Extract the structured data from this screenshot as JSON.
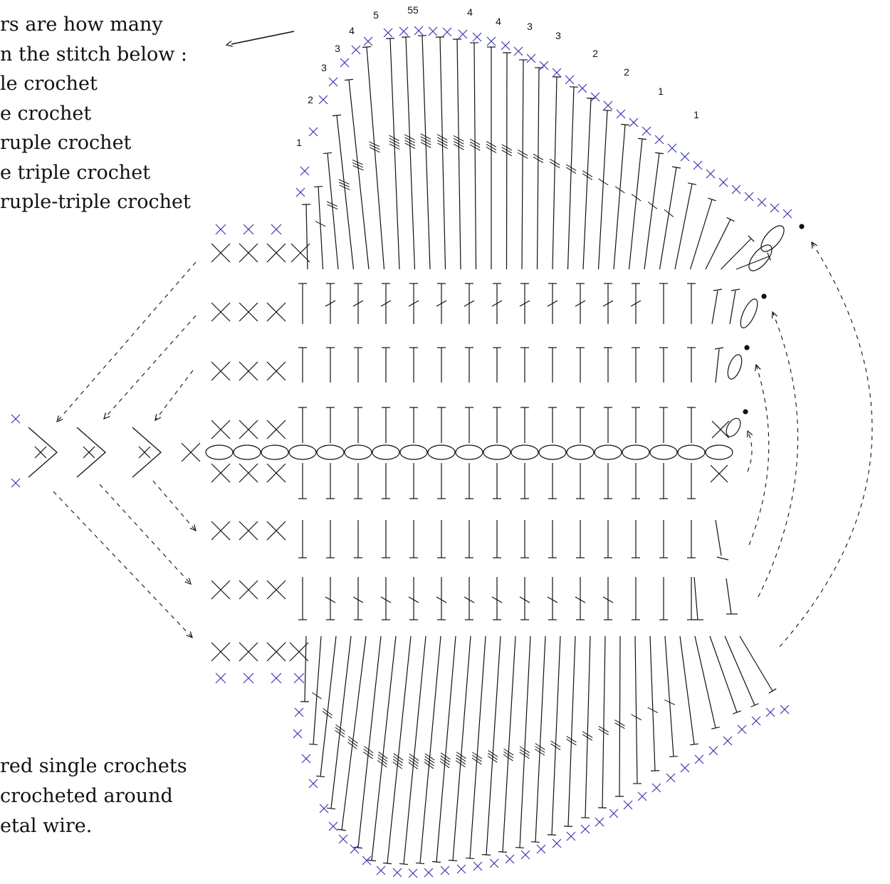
{
  "legend": {
    "lines": [
      "rs are how many",
      "n the stitch below :",
      "le crochet",
      "e crochet",
      "ruple crochet",
      "e triple crochet",
      "ruple-triple crochet"
    ]
  },
  "note": {
    "lines": [
      "red single crochets",
      " crocheted around",
      "etal wire."
    ]
  },
  "top_fan_counts": [
    "1",
    "2",
    "3",
    "3",
    "4",
    "5",
    "55",
    "4",
    "4",
    "3",
    "3",
    "2",
    "2",
    "1",
    "1"
  ],
  "colors": {
    "ink": "#111111",
    "wire_sc": "#3a3ab0"
  },
  "icons": [
    "arrow-icon",
    "chain-stitch-icon",
    "single-crochet-icon",
    "wire-single-crochet-icon",
    "slip-stitch-icon"
  ]
}
